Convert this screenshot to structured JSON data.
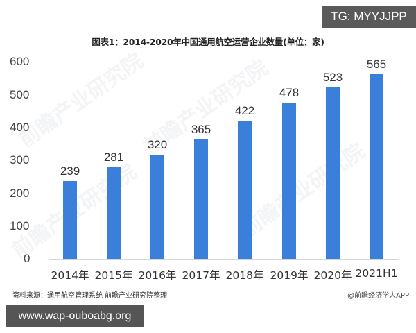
{
  "badge": {
    "tg": "TG: MYYJJPP"
  },
  "footer_badge": {
    "url": "www.wap-ouboabg.org"
  },
  "chart_data": {
    "type": "bar",
    "title": "图表1：2014-2020年中国通用航空运营企业数量(单位：家)",
    "categories": [
      "2014年",
      "2015年",
      "2016年",
      "2017年",
      "2018年",
      "2019年",
      "2020年",
      "2021H1"
    ],
    "values": [
      239,
      281,
      320,
      365,
      422,
      478,
      523,
      565
    ],
    "yticks": [
      "600",
      "500",
      "400",
      "300",
      "200",
      "100",
      "0"
    ],
    "ylim": [
      0,
      600
    ],
    "xlabel": "",
    "ylabel": "",
    "grid": false,
    "legend": null,
    "color": "#3a7fd9",
    "data_labels": [
      "239",
      "281",
      "320",
      "365",
      "422",
      "478",
      "523",
      "565"
    ]
  },
  "source": "资料来源：通用航空管理系统 前瞻产业研究院整理",
  "credit": "@前瞻经济学人APP",
  "watermark": "前瞻产业研究院"
}
